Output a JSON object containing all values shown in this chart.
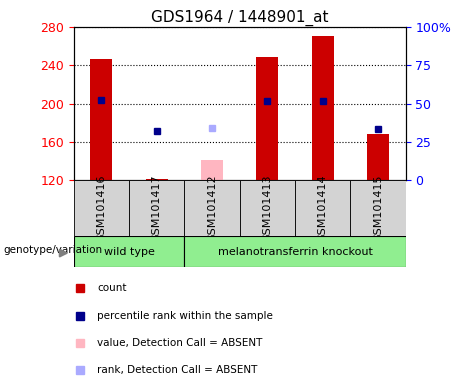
{
  "title": "GDS1964 / 1448901_at",
  "sample_order": [
    "GSM101416",
    "GSM101417",
    "GSM101412",
    "GSM101413",
    "GSM101414",
    "GSM101415"
  ],
  "groups": {
    "wild type": [
      "GSM101416",
      "GSM101417"
    ],
    "melanotransferrin knockout": [
      "GSM101412",
      "GSM101413",
      "GSM101414",
      "GSM101415"
    ]
  },
  "group_order": [
    "wild type",
    "melanotransferrin knockout"
  ],
  "group_color": "#90EE90",
  "ylim_left": [
    120,
    280
  ],
  "ylim_right": [
    0,
    100
  ],
  "yticks_left": [
    120,
    160,
    200,
    240,
    280
  ],
  "yticks_right": [
    0,
    25,
    50,
    75,
    100
  ],
  "yticklabels_right": [
    "0",
    "25",
    "50",
    "75",
    "100%"
  ],
  "bar_values": {
    "GSM101416": 247,
    "GSM101417": 122,
    "GSM101413": 249,
    "GSM101414": 271,
    "GSM101415": 168
  },
  "rank_values": {
    "GSM101416": 204,
    "GSM101417": 172,
    "GSM101413": 203,
    "GSM101414": 203,
    "GSM101415": 174
  },
  "absent_bar_values": {
    "GSM101412": 141
  },
  "absent_rank_values": {
    "GSM101412": 175
  },
  "bar_color": "#cc0000",
  "rank_color": "#00008b",
  "absent_bar_color": "#ffb6c1",
  "absent_rank_color": "#aaaaff",
  "bar_width": 0.4,
  "legend_items": [
    {
      "label": "count",
      "color": "#cc0000"
    },
    {
      "label": "percentile rank within the sample",
      "color": "#00008b"
    },
    {
      "label": "value, Detection Call = ABSENT",
      "color": "#ffb6c1"
    },
    {
      "label": "rank, Detection Call = ABSENT",
      "color": "#aaaaff"
    }
  ],
  "genotype_label": "genotype/variation",
  "sample_box_color": "#d3d3d3",
  "title_fontsize": 11,
  "tick_fontsize": 9,
  "label_fontsize": 8
}
